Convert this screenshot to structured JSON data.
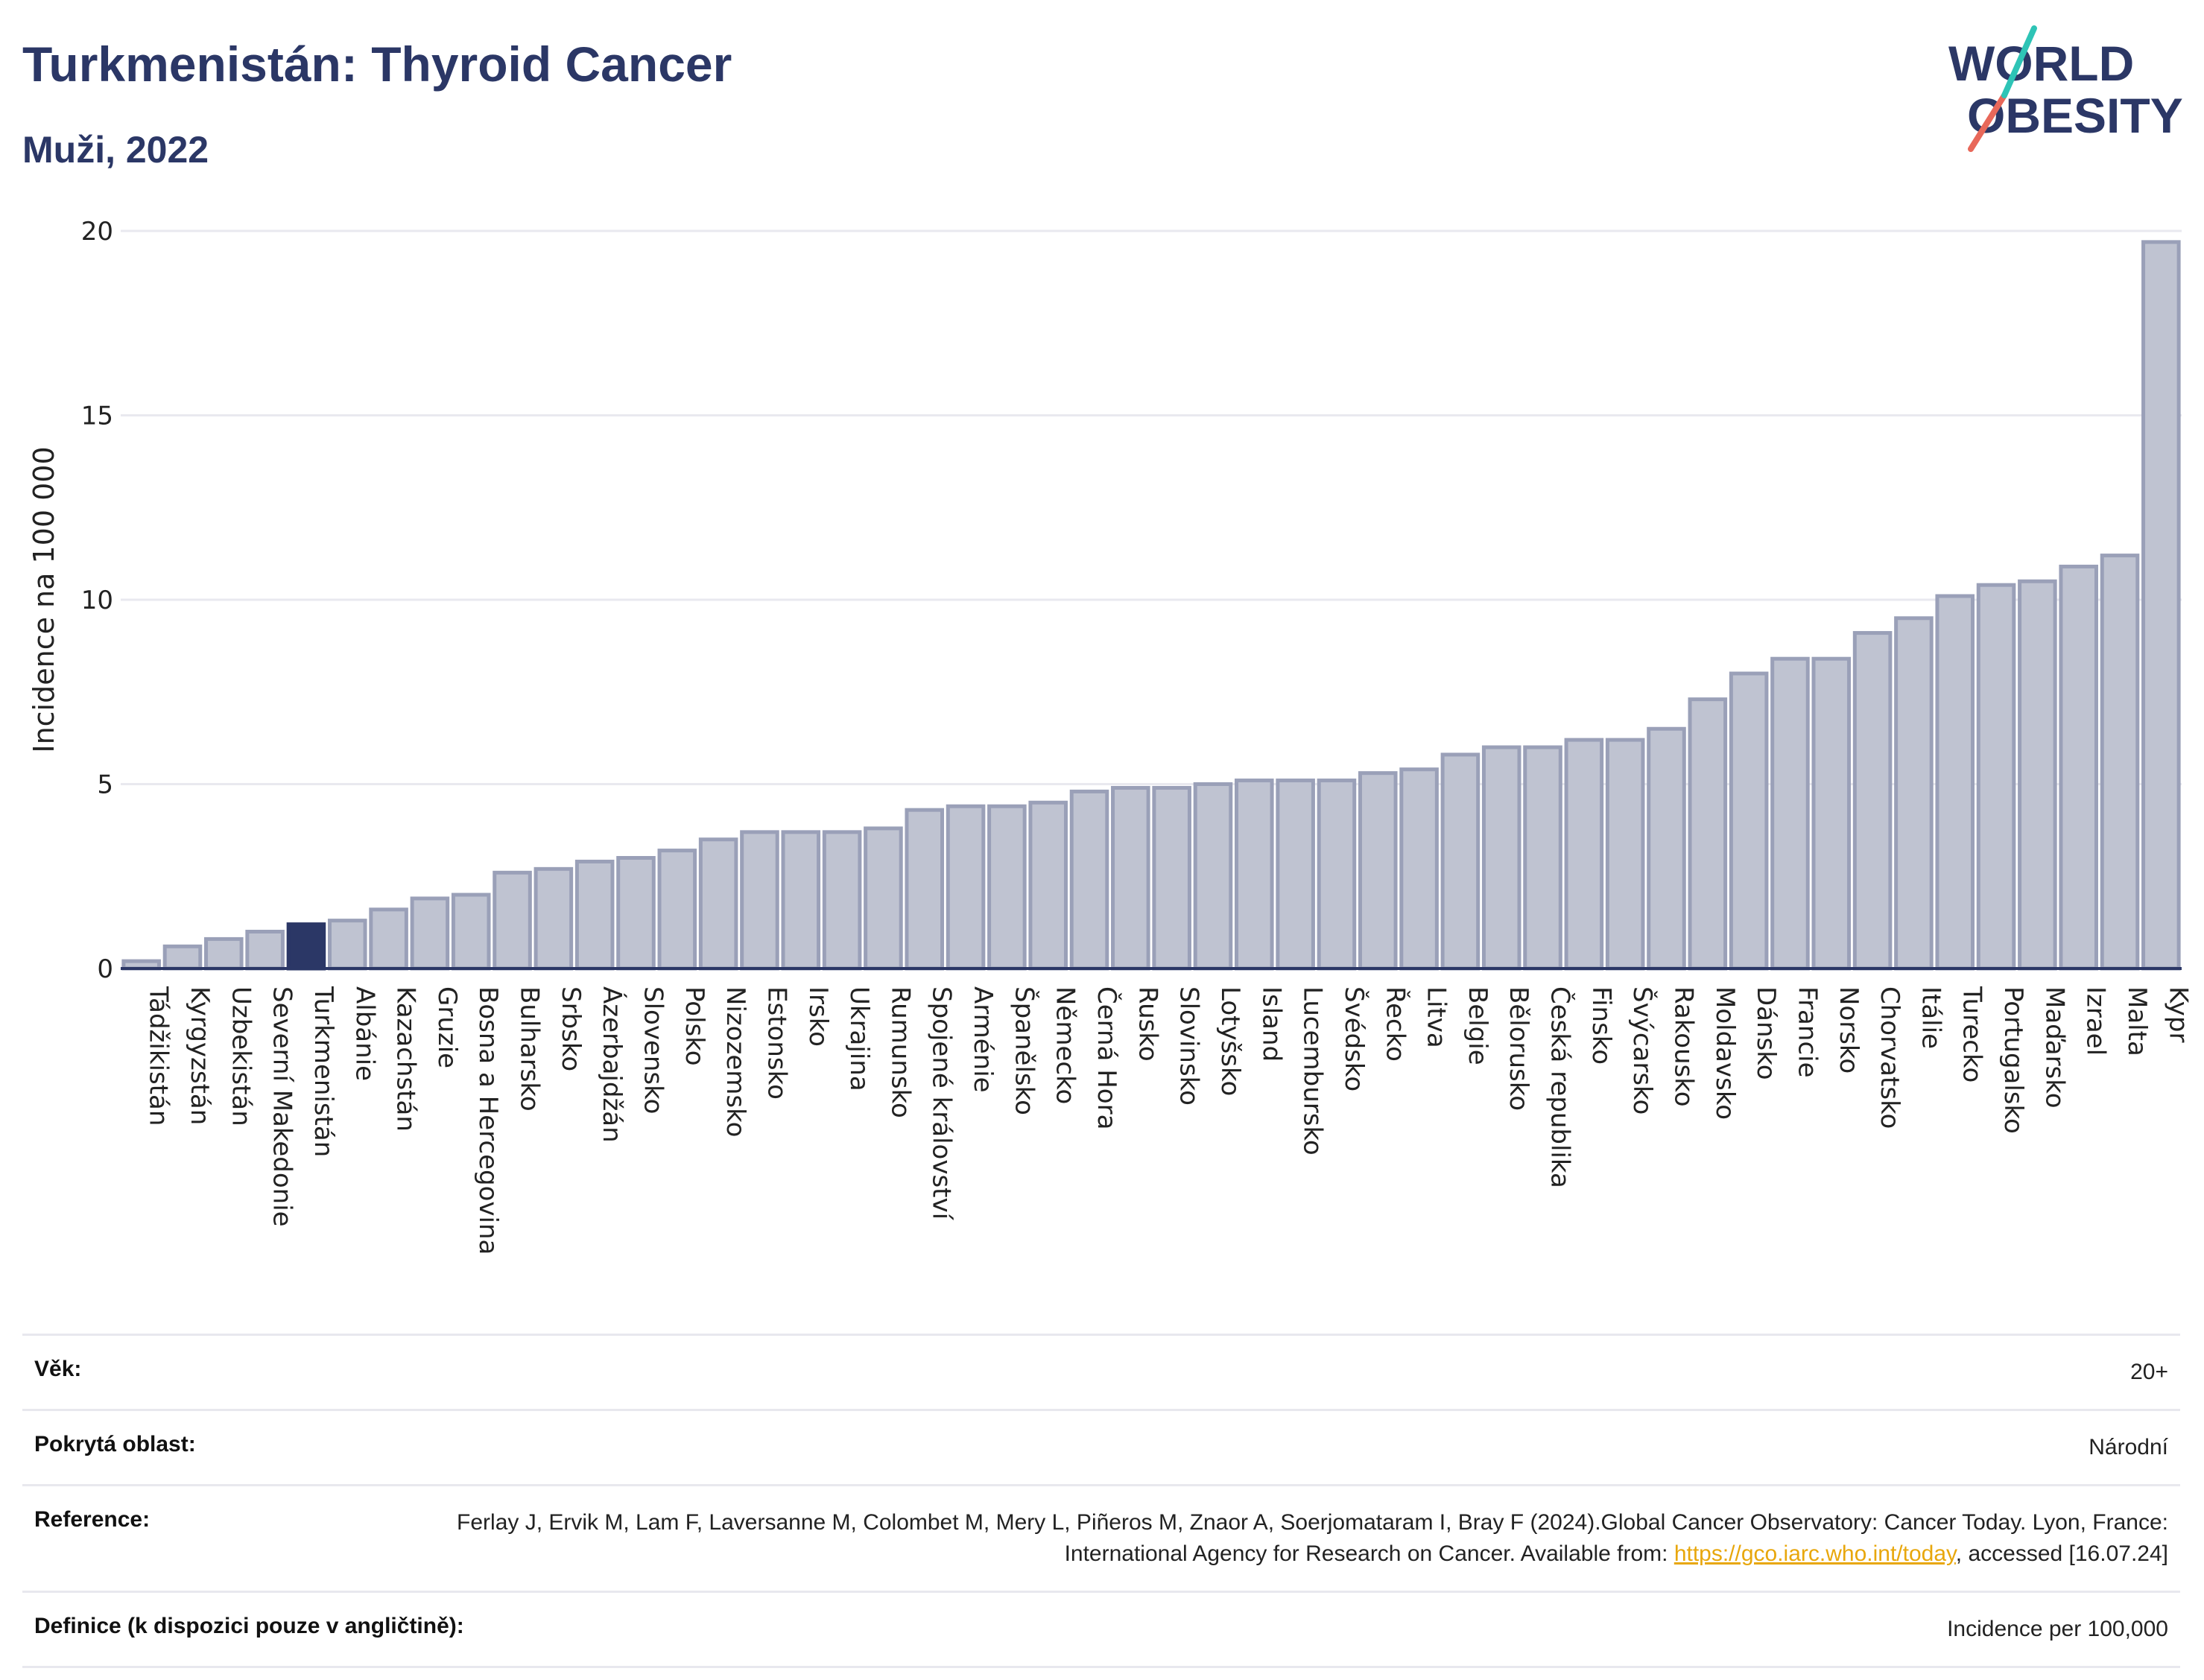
{
  "header": {
    "title": "Turkmenistán: Thyroid Cancer",
    "subtitle": "Muži, 2022"
  },
  "logo": {
    "line1": "WORLD",
    "line2": "OBESITY",
    "brand_color": "#2b3766",
    "accent_teal": "#2ec4b6",
    "accent_coral": "#e8685a"
  },
  "chart_data": {
    "type": "bar",
    "ylabel": "Incidence na 100 000",
    "ylim": [
      0,
      20
    ],
    "yticks": [
      0,
      5,
      10,
      15,
      20
    ],
    "highlight": "Turkmenistán",
    "bar_color": "#bfc3d1",
    "bar_edge_color": "#9aa0b8",
    "highlight_color": "#2b3766",
    "categories": [
      "Tádžikistán",
      "Kyrgyzstán",
      "Uzbekistán",
      "Severní Makedonie",
      "Turkmenistán",
      "Albánie",
      "Kazachstán",
      "Gruzie",
      "Bosna a Hercegovina",
      "Bulharsko",
      "Srbsko",
      "Ázerbajdžán",
      "Slovensko",
      "Polsko",
      "Nizozemsko",
      "Estonsko",
      "Irsko",
      "Ukrajina",
      "Rumunsko",
      "Spojené království",
      "Arménie",
      "Španělsko",
      "Německo",
      "Černá Hora",
      "Rusko",
      "Slovinsko",
      "Lotyšsko",
      "Island",
      "Lucembursko",
      "Švédsko",
      "Řecko",
      "Litva",
      "Belgie",
      "Bělorusko",
      "Česká republika",
      "Finsko",
      "Švýcarsko",
      "Rakousko",
      "Moldavsko",
      "Dánsko",
      "Francie",
      "Norsko",
      "Chorvatsko",
      "Itálie",
      "Turecko",
      "Portugalsko",
      "Maďarsko",
      "Izrael",
      "Malta",
      "Kypr"
    ],
    "values": [
      0.2,
      0.6,
      0.8,
      1.0,
      1.2,
      1.3,
      1.6,
      1.9,
      2.0,
      2.6,
      2.7,
      2.9,
      3.0,
      3.2,
      3.5,
      3.7,
      3.7,
      3.7,
      3.8,
      4.3,
      4.4,
      4.4,
      4.5,
      4.8,
      4.9,
      4.9,
      5.0,
      5.1,
      5.1,
      5.1,
      5.3,
      5.4,
      5.8,
      6.0,
      6.0,
      6.2,
      6.2,
      6.5,
      7.3,
      8.0,
      8.4,
      8.4,
      9.1,
      9.5,
      10.1,
      10.4,
      10.5,
      10.9,
      11.2,
      19.7
    ]
  },
  "info": {
    "age_label": "Věk:",
    "age_value": "20+",
    "area_label": "Pokrytá oblast:",
    "area_value": "Národní",
    "ref_label": "Reference:",
    "ref_text_1": "Ferlay J, Ervik M, Lam F, Laversanne M, Colombet M, Mery L, Piñeros M, Znaor A, Soerjomataram I, Bray F (2024).Global Cancer Observatory: Cancer Today. Lyon, France: International Agency for Research on Cancer. Available from: ",
    "ref_link": "https://gco.iarc.who.int/today",
    "ref_text_2": ", accessed [16.07.24]",
    "def_label": "Definice (k dispozici pouze v angličtině):",
    "def_value": "Incidence per 100,000"
  }
}
